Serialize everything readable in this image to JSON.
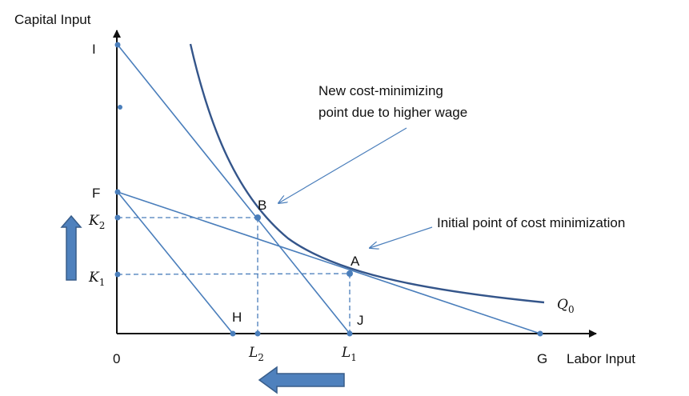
{
  "axes": {
    "y_label": "Capital Input",
    "x_label": "Labor Input",
    "origin_label": "0"
  },
  "points": {
    "I": "I",
    "F": "F",
    "B": "B",
    "A": "A",
    "H": "H",
    "J": "J",
    "G": "G"
  },
  "ticks": {
    "K2": "K",
    "K2_sub": "2",
    "K1": "K",
    "K1_sub": "1",
    "L2": "L",
    "L2_sub": "2",
    "L1": "L",
    "L1_sub": "1"
  },
  "curve": {
    "label": "Q",
    "label_sub": "0"
  },
  "annotations": {
    "new_point_line1": "New cost-minimizing",
    "new_point_line2": "point due to higher wage",
    "initial_point": "Initial point of cost minimization"
  },
  "colors": {
    "line": "#4a7ebb",
    "curve": "#34558a",
    "arrow_fill": "#4f81bd",
    "arrow_stroke": "#385d8a",
    "text": "#111111"
  }
}
